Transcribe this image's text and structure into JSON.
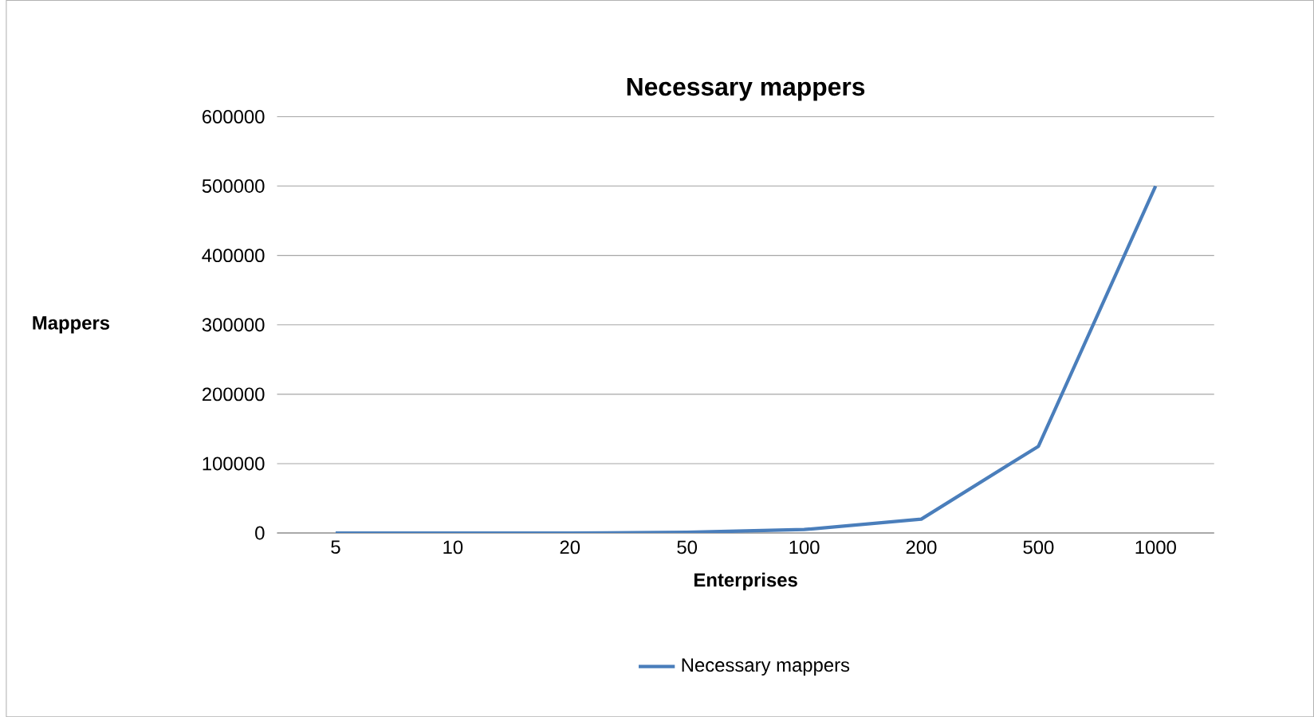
{
  "chart_data": {
    "type": "line",
    "title": "Necessary mappers",
    "xlabel": "Enterprises",
    "ylabel": "Mappers",
    "categories": [
      "5",
      "10",
      "20",
      "50",
      "100",
      "200",
      "500",
      "1000"
    ],
    "series": [
      {
        "name": "Necessary mappers",
        "color": "#4a7ebb",
        "values": [
          0,
          0,
          0,
          1000,
          5000,
          20000,
          125000,
          500000
        ]
      }
    ],
    "ylim": [
      0,
      600000
    ],
    "yticks": [
      0,
      100000,
      200000,
      300000,
      400000,
      500000,
      600000
    ],
    "grid": "y",
    "legend": "bottom",
    "marker": "none",
    "line_style": "solid"
  }
}
